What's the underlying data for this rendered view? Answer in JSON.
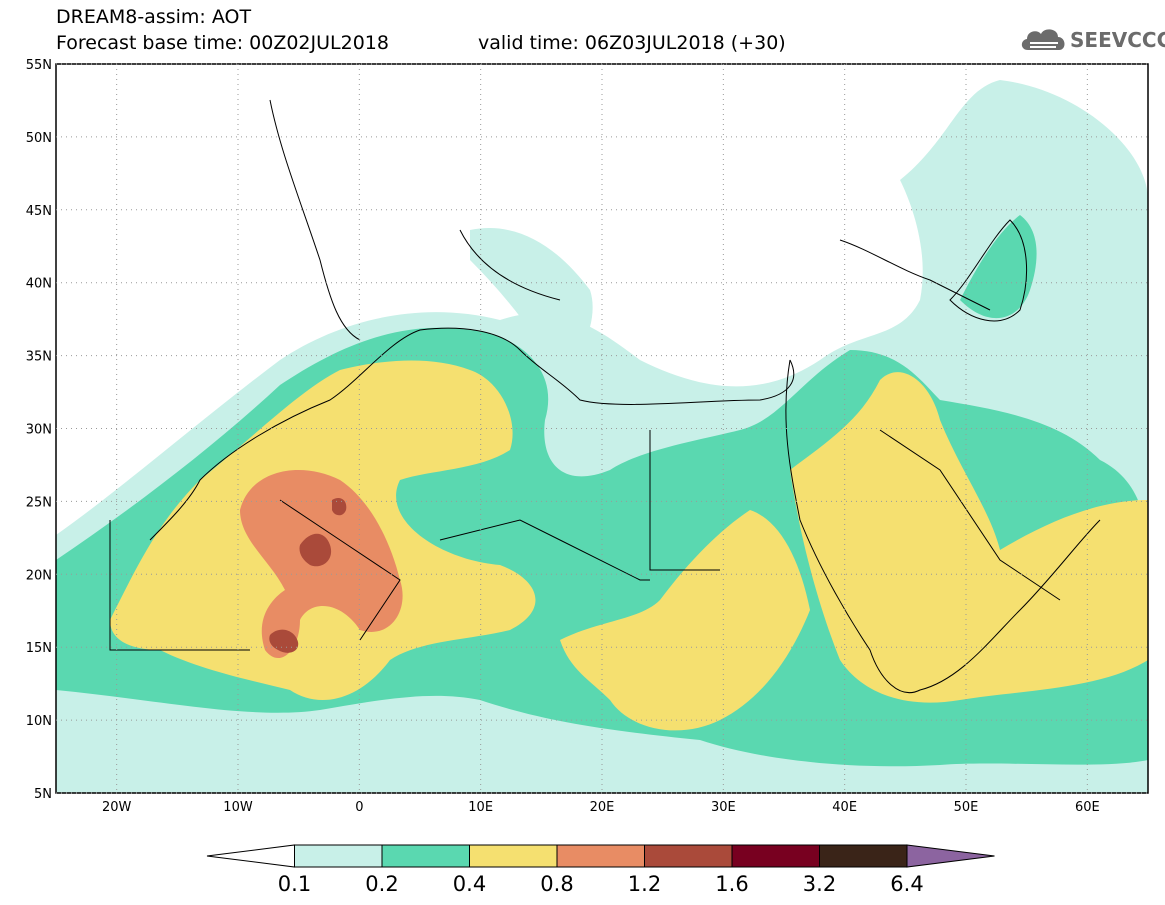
{
  "header": {
    "line1": "DREAM8-assim: AOT",
    "line2_left": "Forecast base time: 00Z02JUL2018",
    "line2_right": "valid time: 06Z03JUL2018 (+30)"
  },
  "logo": {
    "text": "SEEVCCC",
    "icon": "cloud-icon"
  },
  "map": {
    "lat_ticks": [
      "55N",
      "50N",
      "45N",
      "40N",
      "35N",
      "30N",
      "25N",
      "20N",
      "15N",
      "10N",
      "5N"
    ],
    "lon_ticks": [
      "20W",
      "10W",
      "0",
      "10E",
      "20E",
      "30E",
      "40E",
      "50E",
      "60E"
    ],
    "lat_range": [
      5,
      55
    ],
    "lon_range": [
      -25,
      65
    ]
  },
  "colorbar": {
    "labels": [
      "0.1",
      "0.2",
      "0.4",
      "0.8",
      "1.2",
      "1.6",
      "3.2",
      "6.4"
    ],
    "colors": [
      "#ffffff",
      "#c8f0e8",
      "#5ad8b0",
      "#f5e070",
      "#e88c64",
      "#aa4a3a",
      "#780020",
      "#3a2418",
      "#8c64a0"
    ]
  }
}
